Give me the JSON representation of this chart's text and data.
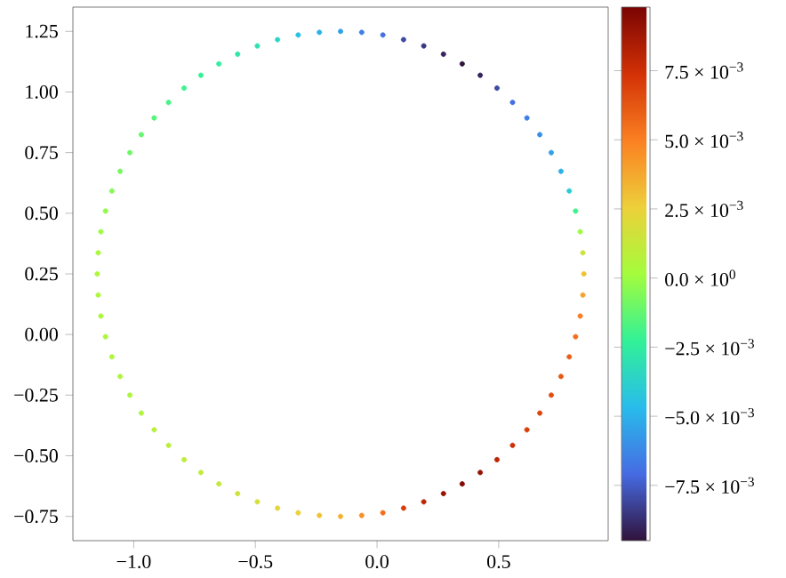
{
  "chart_data": {
    "type": "scatter",
    "marker": "circle",
    "x": [
      0.85,
      0.846,
      0.835,
      0.816,
      0.79,
      0.756,
      0.716,
      0.669,
      0.616,
      0.557,
      0.493,
      0.424,
      0.35,
      0.273,
      0.192,
      0.109,
      0.024,
      -0.063,
      -0.15,
      -0.237,
      -0.324,
      -0.409,
      -0.492,
      -0.573,
      -0.65,
      -0.724,
      -0.793,
      -0.857,
      -0.916,
      -0.969,
      -1.016,
      -1.056,
      -1.09,
      -1.116,
      -1.135,
      -1.146,
      -1.15,
      -1.146,
      -1.135,
      -1.116,
      -1.09,
      -1.056,
      -1.016,
      -0.969,
      -0.916,
      -0.857,
      -0.793,
      -0.724,
      -0.65,
      -0.573,
      -0.492,
      -0.409,
      -0.324,
      -0.237,
      -0.15,
      -0.063,
      0.024,
      0.109,
      0.192,
      0.273,
      0.35,
      0.424,
      0.493,
      0.557,
      0.616,
      0.669,
      0.716,
      0.756,
      0.79,
      0.816,
      0.835,
      0.846
    ],
    "values": [
      0.25,
      0.337,
      0.424,
      0.509,
      0.592,
      0.673,
      0.75,
      0.824,
      0.893,
      0.957,
      1.016,
      1.069,
      1.116,
      1.156,
      1.19,
      1.216,
      1.235,
      1.246,
      1.25,
      1.246,
      1.235,
      1.216,
      1.19,
      1.156,
      1.116,
      1.069,
      1.016,
      0.957,
      0.893,
      0.824,
      0.75,
      0.673,
      0.592,
      0.509,
      0.424,
      0.337,
      0.25,
      0.163,
      0.076,
      -0.009,
      -0.092,
      -0.173,
      -0.25,
      -0.324,
      -0.393,
      -0.457,
      -0.516,
      -0.569,
      -0.616,
      -0.656,
      -0.69,
      -0.716,
      -0.735,
      -0.746,
      -0.75,
      -0.746,
      -0.735,
      -0.716,
      -0.69,
      -0.656,
      -0.616,
      -0.569,
      -0.516,
      -0.457,
      -0.393,
      -0.324,
      -0.25,
      -0.173,
      -0.092,
      -0.009,
      0.076,
      0.163
    ],
    "cvalues": [
      0.003,
      0.0015,
      0.0,
      -0.002,
      -0.004,
      -0.005,
      -0.0055,
      -0.006,
      -0.0065,
      -0.007,
      -0.008,
      -0.009,
      -0.0095,
      -0.009,
      -0.0085,
      -0.008,
      -0.007,
      -0.0065,
      -0.0055,
      -0.005,
      -0.0045,
      -0.0035,
      -0.003,
      -0.0028,
      -0.0025,
      -0.0022,
      -0.002,
      -0.0018,
      -0.0015,
      -0.0012,
      -0.001,
      -0.0008,
      -0.0005,
      -0.0002,
      0.0,
      0.0003,
      0.0005,
      0.0005,
      0.0005,
      0.0005,
      0.0005,
      0.0005,
      0.0005,
      0.0005,
      0.0008,
      0.0009,
      0.001,
      0.0011,
      0.0012,
      0.0015,
      0.0018,
      0.0022,
      0.0025,
      0.003,
      0.0035,
      0.0045,
      0.0055,
      0.007,
      0.008,
      0.009,
      0.0095,
      0.009,
      0.008,
      0.0075,
      0.007,
      0.0068,
      0.0065,
      0.0062,
      0.006,
      0.0055,
      0.005,
      0.004
    ],
    "xlim": [
      -1.25,
      0.95
    ],
    "ylim": [
      -0.85,
      1.35
    ],
    "xticks": [
      {
        "value": -1.0,
        "label": "−1.0"
      },
      {
        "value": -0.5,
        "label": "−0.5"
      },
      {
        "value": 0.0,
        "label": "0.0"
      },
      {
        "value": 0.5,
        "label": "0.5"
      }
    ],
    "yticks": [
      {
        "value": -0.75,
        "label": "−0.75"
      },
      {
        "value": -0.5,
        "label": "−0.50"
      },
      {
        "value": -0.25,
        "label": "−0.25"
      },
      {
        "value": 0.0,
        "label": "0.00"
      },
      {
        "value": 0.25,
        "label": "0.25"
      },
      {
        "value": 0.5,
        "label": "0.50"
      },
      {
        "value": 0.75,
        "label": "0.75"
      },
      {
        "value": 1.0,
        "label": "1.00"
      },
      {
        "value": 1.25,
        "label": "1.25"
      }
    ],
    "clim": [
      -0.0095,
      0.0098
    ],
    "cticks": [
      {
        "value": -0.0075,
        "label": "−7.5 × 10$^{−3}$"
      },
      {
        "value": -0.005,
        "label": "−5.0 × 10$^{−3}$"
      },
      {
        "value": -0.0025,
        "label": "−2.5 × 10$^{−3}$"
      },
      {
        "value": 0.0,
        "label": "0.0 × 10$^{0}$"
      },
      {
        "value": 0.0025,
        "label": "2.5 × 10$^{−3}$"
      },
      {
        "value": 0.005,
        "label": "5.0 × 10$^{−3}$"
      },
      {
        "value": 0.0075,
        "label": "7.5 × 10$^{−3}$"
      }
    ]
  }
}
